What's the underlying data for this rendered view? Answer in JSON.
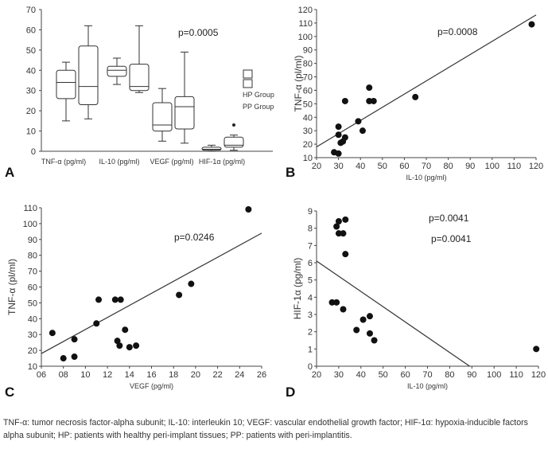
{
  "chart_data": [
    {
      "panel": "A",
      "type": "box",
      "p_label": "p=0.0005",
      "ylim": [
        0,
        70
      ],
      "yticks": [
        0,
        10,
        20,
        30,
        40,
        50,
        60,
        70
      ],
      "categories": [
        "TNF-α (pg/ml)",
        "IL-10 (pg/ml)",
        "VEGF (pg/ml)",
        "HIF-1α (pg/ml)"
      ],
      "legend": [
        "HP Group",
        "PP Group"
      ],
      "series": [
        {
          "name": "HP Group",
          "boxes": [
            {
              "min": 15,
              "q1": 26,
              "median": 34,
              "q3": 40,
              "max": 44
            },
            {
              "min": 33,
              "q1": 37,
              "median": 40,
              "q3": 42,
              "max": 46
            },
            {
              "min": 5,
              "q1": 10,
              "median": 13,
              "q3": 24,
              "max": 31
            },
            {
              "min": 0,
              "q1": 0.5,
              "median": 1,
              "q3": 2,
              "max": 3
            }
          ]
        },
        {
          "name": "PP Group",
          "boxes": [
            {
              "min": 16,
              "q1": 23,
              "median": 32,
              "q3": 52,
              "max": 62
            },
            {
              "min": 29,
              "q1": 30,
              "median": 32,
              "q3": 43,
              "max": 62
            },
            {
              "min": 4,
              "q1": 11,
              "median": 22,
              "q3": 27,
              "max": 49
            },
            {
              "min": 0.5,
              "q1": 2,
              "median": 3,
              "q3": 7,
              "max": 8,
              "outliers": [
                13
              ]
            }
          ]
        }
      ]
    },
    {
      "panel": "B",
      "type": "scatter",
      "p_label": "p=0.0008",
      "xlabel": "IL-10 (pg/ml)",
      "ylabel": "TNF-α (pl/ml)",
      "xlim": [
        20,
        120
      ],
      "ylim": [
        10,
        120
      ],
      "xticks": [
        20,
        30,
        40,
        50,
        60,
        70,
        80,
        90,
        100,
        110,
        120
      ],
      "yticks": [
        10,
        20,
        30,
        40,
        50,
        60,
        70,
        80,
        90,
        100,
        110,
        120
      ],
      "points": [
        [
          28,
          14
        ],
        [
          30,
          13
        ],
        [
          30,
          27
        ],
        [
          30,
          33
        ],
        [
          31,
          21
        ],
        [
          32,
          22
        ],
        [
          33,
          25
        ],
        [
          33,
          52
        ],
        [
          39,
          37
        ],
        [
          41,
          30
        ],
        [
          44,
          52
        ],
        [
          44,
          62
        ],
        [
          46,
          52
        ],
        [
          65,
          55
        ],
        [
          118,
          109
        ]
      ],
      "trendline": [
        [
          20,
          18
        ],
        [
          120,
          116
        ]
      ]
    },
    {
      "panel": "C",
      "type": "scatter",
      "p_label": "p=0.0246",
      "xlabel": "VEGF (pg/ml)",
      "ylabel": "TNF-α (pl/ml)",
      "xlim": [
        6,
        26
      ],
      "ylim": [
        10,
        110
      ],
      "xticks": [
        "06",
        "08",
        "10",
        "12",
        "14",
        "16",
        "18",
        "20",
        "22",
        "24",
        "26"
      ],
      "yticks": [
        10,
        20,
        30,
        40,
        50,
        60,
        70,
        80,
        90,
        100,
        110
      ],
      "points": [
        [
          7,
          31
        ],
        [
          8,
          15
        ],
        [
          9,
          16
        ],
        [
          9,
          27
        ],
        [
          11,
          37
        ],
        [
          11.2,
          52
        ],
        [
          12.7,
          52
        ],
        [
          12.9,
          26
        ],
        [
          13.2,
          52
        ],
        [
          13.1,
          23
        ],
        [
          13.6,
          33
        ],
        [
          14,
          22
        ],
        [
          14.6,
          23
        ],
        [
          18.5,
          55
        ],
        [
          19.6,
          62
        ],
        [
          24.8,
          109
        ]
      ],
      "trendline": [
        [
          6,
          18
        ],
        [
          26,
          94
        ]
      ]
    },
    {
      "panel": "D",
      "type": "scatter",
      "p_label": "p=0.0041",
      "p_label_small": "p=0.0041",
      "xlabel": "IL-10 (pg/ml)",
      "ylabel": "HIF-1α (pg/ml)",
      "xlim": [
        20,
        120
      ],
      "ylim": [
        0,
        9
      ],
      "xticks": [
        20,
        30,
        40,
        50,
        60,
        70,
        80,
        90,
        100,
        110,
        120
      ],
      "yticks": [
        0,
        1,
        2,
        3,
        4,
        5,
        6,
        7,
        8,
        9
      ],
      "points": [
        [
          27,
          3.7
        ],
        [
          29,
          3.7
        ],
        [
          29,
          8.1
        ],
        [
          30,
          8.4
        ],
        [
          30,
          7.7
        ],
        [
          32,
          7.7
        ],
        [
          33,
          8.5
        ],
        [
          33,
          6.5
        ],
        [
          32,
          3.3
        ],
        [
          38,
          2.1
        ],
        [
          41,
          2.7
        ],
        [
          44,
          2.9
        ],
        [
          44,
          1.9
        ],
        [
          46,
          1.5
        ],
        [
          119,
          1.0
        ]
      ],
      "trendline": [
        [
          20,
          6.1
        ],
        [
          89,
          0
        ]
      ]
    }
  ],
  "panel_letters": [
    "A",
    "B",
    "C",
    "D"
  ],
  "caption": "TNF-α: tumor necrosis factor-alpha subunit; IL-10: interleukin 10; VEGF: vascular endothelial growth factor; HIF-1α: hypoxia-inducible factors alpha subunit; HP: patients with healthy peri-implant tissues; PP: patients with peri-implantitis."
}
